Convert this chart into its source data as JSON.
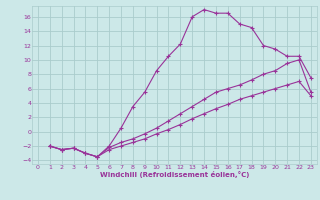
{
  "xlabel": "Windchill (Refroidissement éolien,°C)",
  "background_color": "#cce8e8",
  "grid_color": "#aacccc",
  "line_color": "#993399",
  "xlim": [
    -0.5,
    23.5
  ],
  "ylim": [
    -4.5,
    17.5
  ],
  "yticks": [
    -4,
    -2,
    0,
    2,
    4,
    6,
    8,
    10,
    12,
    14,
    16
  ],
  "xticks": [
    0,
    1,
    2,
    3,
    4,
    5,
    6,
    7,
    8,
    9,
    10,
    11,
    12,
    13,
    14,
    15,
    16,
    17,
    18,
    19,
    20,
    21,
    22,
    23
  ],
  "curve1_x": [
    1,
    2,
    3,
    4,
    5,
    6,
    7,
    8,
    9,
    10,
    11,
    12,
    13,
    14,
    15,
    16,
    17,
    18,
    19,
    20,
    21,
    22,
    23
  ],
  "curve1_y": [
    -2.0,
    -2.5,
    -2.3,
    -3.0,
    -3.5,
    -2.0,
    0.5,
    3.5,
    5.5,
    8.5,
    10.5,
    12.2,
    16.0,
    17.0,
    16.5,
    16.5,
    15.0,
    14.5,
    12.0,
    11.5,
    10.5,
    10.5,
    7.5
  ],
  "curve2_x": [
    1,
    2,
    3,
    4,
    5,
    6,
    7,
    8,
    9,
    10,
    11,
    12,
    13,
    14,
    15,
    16,
    17,
    18,
    19,
    20,
    21,
    22,
    23
  ],
  "curve2_y": [
    -2.0,
    -2.5,
    -2.3,
    -3.0,
    -3.5,
    -2.2,
    -1.5,
    -1.0,
    -0.3,
    0.5,
    1.5,
    2.5,
    3.5,
    4.5,
    5.5,
    6.0,
    6.5,
    7.2,
    8.0,
    8.5,
    9.5,
    10.0,
    5.5
  ],
  "curve3_x": [
    1,
    2,
    3,
    4,
    5,
    6,
    7,
    8,
    9,
    10,
    11,
    12,
    13,
    14,
    15,
    16,
    17,
    18,
    19,
    20,
    21,
    22,
    23
  ],
  "curve3_y": [
    -2.0,
    -2.5,
    -2.3,
    -3.0,
    -3.5,
    -2.5,
    -2.0,
    -1.5,
    -1.0,
    -0.3,
    0.3,
    1.0,
    1.8,
    2.5,
    3.2,
    3.8,
    4.5,
    5.0,
    5.5,
    6.0,
    6.5,
    7.0,
    5.0
  ]
}
